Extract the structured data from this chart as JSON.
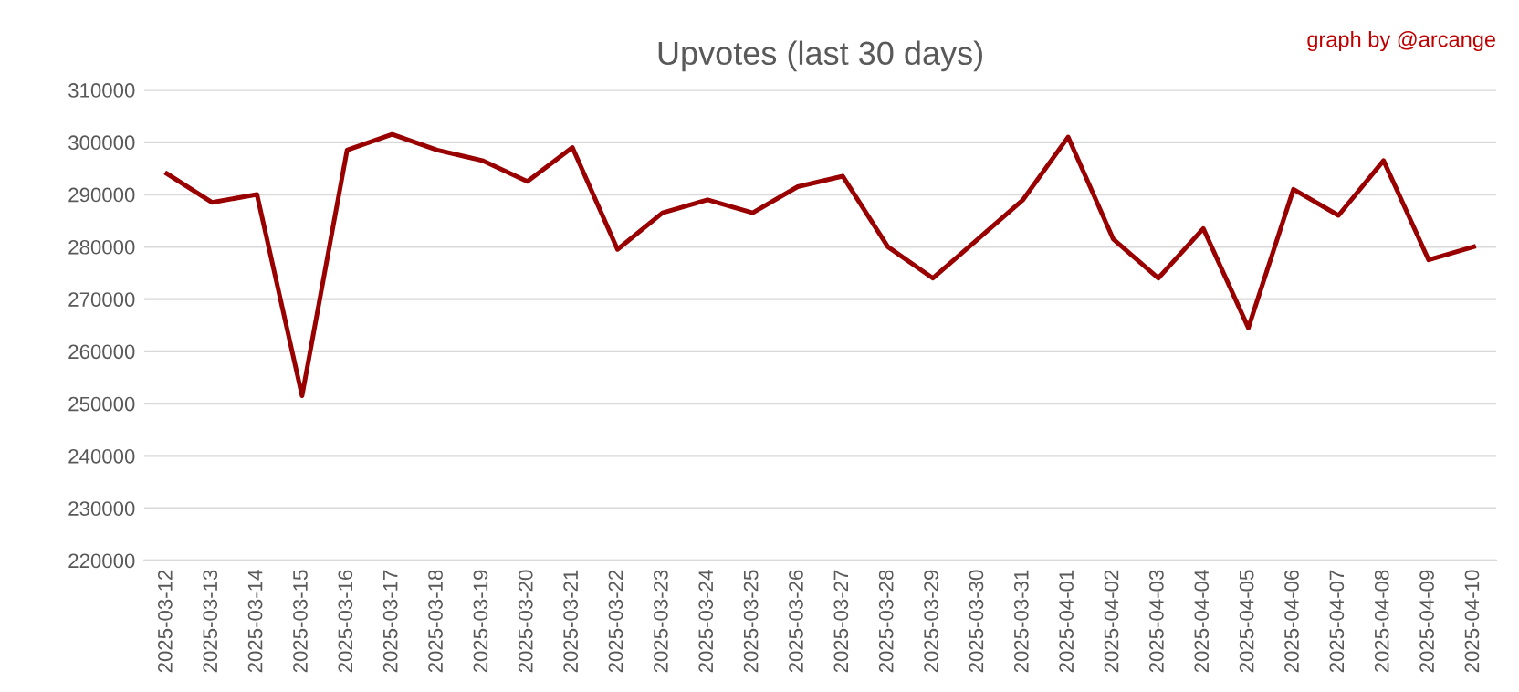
{
  "chart_data": {
    "type": "line",
    "title": "Upvotes (last 30 days)",
    "annotations": [
      "graph by @arcange"
    ],
    "categories": [
      "2025-03-12",
      "2025-03-13",
      "2025-03-14",
      "2025-03-15",
      "2025-03-16",
      "2025-03-17",
      "2025-03-18",
      "2025-03-19",
      "2025-03-20",
      "2025-03-21",
      "2025-03-22",
      "2025-03-23",
      "2025-03-24",
      "2025-03-25",
      "2025-03-26",
      "2025-03-27",
      "2025-03-28",
      "2025-03-29",
      "2025-03-30",
      "2025-03-31",
      "2025-04-01",
      "2025-04-02",
      "2025-04-03",
      "2025-04-04",
      "2025-04-05",
      "2025-04-06",
      "2025-04-07",
      "2025-04-08",
      "2025-04-09",
      "2025-04-10"
    ],
    "series": [
      {
        "color": "#990000",
        "values": [
          294000,
          288500,
          290000,
          251500,
          298500,
          301500,
          298500,
          296500,
          292500,
          299000,
          279500,
          286500,
          289000,
          286500,
          291500,
          293500,
          280000,
          274000,
          281500,
          289000,
          301000,
          281500,
          274000,
          283500,
          264500,
          291000,
          286000,
          296500,
          277500,
          280000
        ]
      }
    ],
    "ylim": [
      220000,
      310000
    ],
    "yticks": [
      220000,
      230000,
      240000,
      250000,
      260000,
      270000,
      280000,
      290000,
      300000,
      310000
    ],
    "grid": "y",
    "legend": false,
    "marker": "none",
    "line_style": "solid"
  }
}
